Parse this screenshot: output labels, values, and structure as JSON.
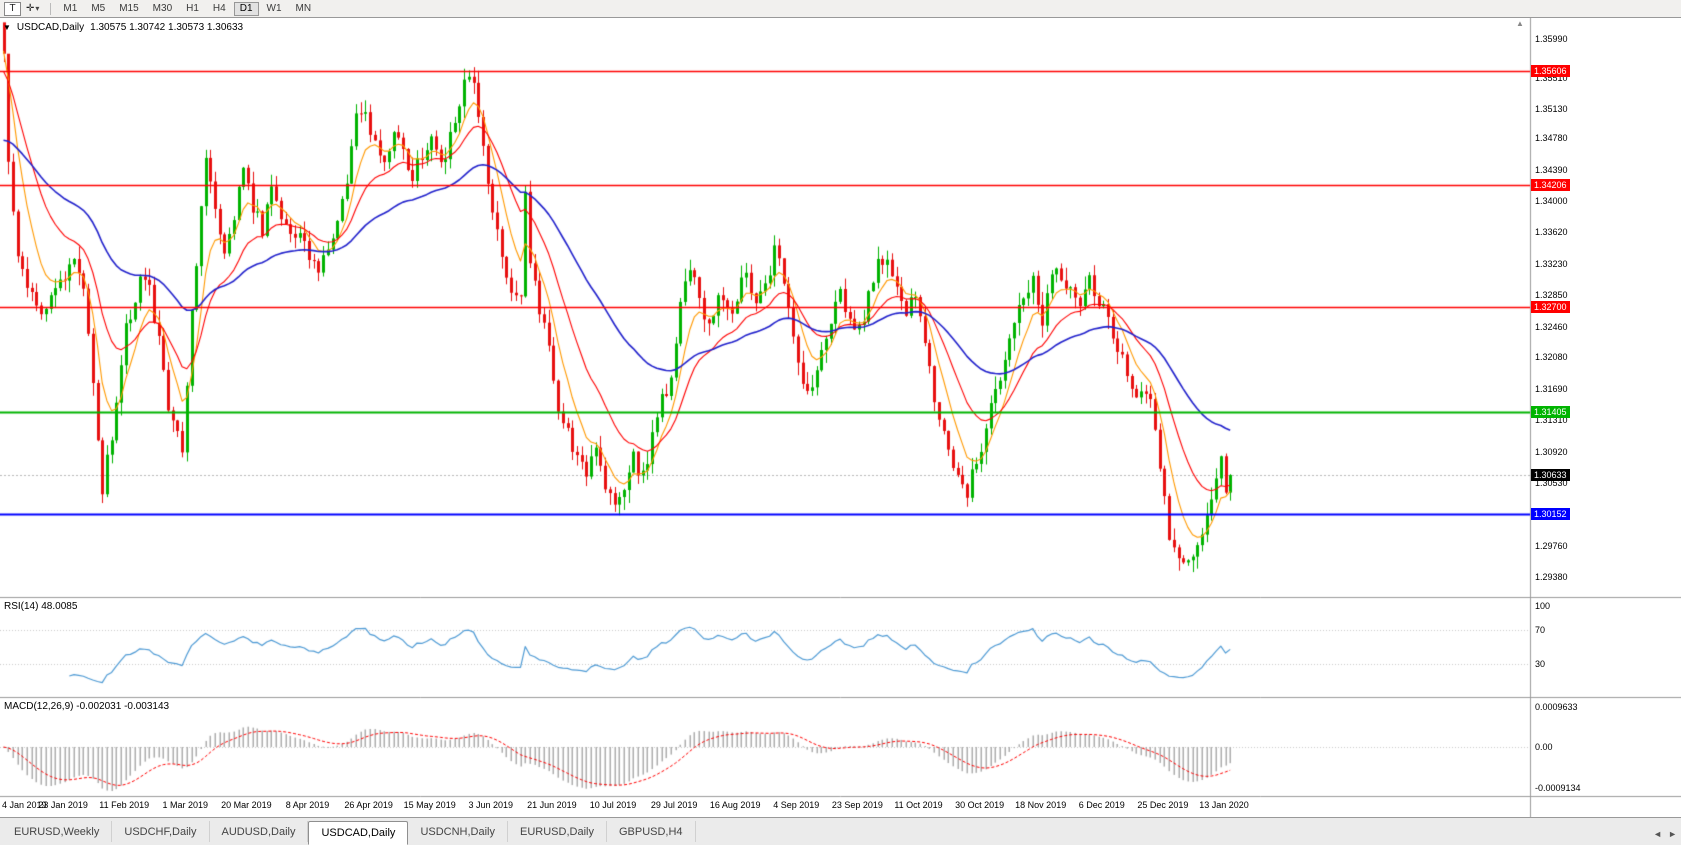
{
  "icons": {
    "collapse_arrow": "▼",
    "dropdown": "▾",
    "crosshair": "✛",
    "shift_marker": "▲",
    "tab_scroll_left": "◄",
    "tab_scroll_right": "►"
  },
  "toolbar": {
    "text_tool_label": "T",
    "timeframes": [
      "M1",
      "M5",
      "M15",
      "M30",
      "H1",
      "H4",
      "D1",
      "W1",
      "MN"
    ],
    "active_timeframe": "D1"
  },
  "chart": {
    "symbol_label": "USDCAD,Daily",
    "ohlc_text": "1.30575 1.30742 1.30573 1.30633",
    "open": "1.30575",
    "high": "1.30742",
    "low": "1.30573",
    "close": "1.30633"
  },
  "indicators": {
    "rsi_label": "RSI(14) 48.0085",
    "macd_label": "MACD(12,26,9) -0.002031 -0.003143"
  },
  "tabs": {
    "items": [
      "EURUSD,Weekly",
      "USDCHF,Daily",
      "AUDUSD,Daily",
      "USDCAD,Daily",
      "USDCNH,Daily",
      "EURUSD,Daily",
      "GBPUSD,H4"
    ],
    "active": "USDCAD,Daily"
  },
  "chart_data": [
    {
      "type": "candlestick",
      "title": "USDCAD Daily",
      "up_color": "#00b300",
      "down_color": "#e81010",
      "x_tick_labels": [
        "4 Jan 2019",
        "23 Jan 2019",
        "11 Feb 2019",
        "1 Mar 2019",
        "20 Mar 2019",
        "8 Apr 2019",
        "26 Apr 2019",
        "15 May 2019",
        "3 Jun 2019",
        "21 Jun 2019",
        "10 Jul 2019",
        "29 Jul 2019",
        "16 Aug 2019",
        "4 Sep 2019",
        "23 Sep 2019",
        "11 Oct 2019",
        "30 Oct 2019",
        "18 Nov 2019",
        "6 Dec 2019",
        "25 Dec 2019",
        "13 Jan 2020"
      ],
      "candles_per_tick_interval": 13,
      "candle_count": 262,
      "last_close": 1.30633,
      "price_path_anchors": [
        [
          0,
          1.3585
        ],
        [
          1,
          1.344
        ],
        [
          3,
          1.333
        ],
        [
          5,
          1.3285
        ],
        [
          8,
          1.3265
        ],
        [
          11,
          1.3292
        ],
        [
          13,
          1.3312
        ],
        [
          15,
          1.3332
        ],
        [
          17,
          1.329
        ],
        [
          19,
          1.318
        ],
        [
          21,
          1.3048
        ],
        [
          23,
          1.311
        ],
        [
          26,
          1.3242
        ],
        [
          29,
          1.3302
        ],
        [
          31,
          1.329
        ],
        [
          33,
          1.3232
        ],
        [
          35,
          1.3152
        ],
        [
          38,
          1.31
        ],
        [
          40,
          1.3262
        ],
        [
          43,
          1.3452
        ],
        [
          45,
          1.339
        ],
        [
          47,
          1.3342
        ],
        [
          49,
          1.3382
        ],
        [
          51,
          1.3432
        ],
        [
          53,
          1.3392
        ],
        [
          55,
          1.3362
        ],
        [
          57,
          1.3428
        ],
        [
          59,
          1.3372
        ],
        [
          61,
          1.3352
        ],
        [
          63,
          1.3362
        ],
        [
          65,
          1.3332
        ],
        [
          67,
          1.3312
        ],
        [
          69,
          1.3342
        ],
        [
          71,
          1.3382
        ],
        [
          73,
          1.3428
        ],
        [
          75,
          1.3498
        ],
        [
          77,
          1.3512
        ],
        [
          79,
          1.3472
        ],
        [
          81,
          1.3442
        ],
        [
          83,
          1.3482
        ],
        [
          85,
          1.3462
        ],
        [
          87,
          1.3432
        ],
        [
          89,
          1.3452
        ],
        [
          91,
          1.3472
        ],
        [
          93,
          1.3442
        ],
        [
          95,
          1.3482
        ],
        [
          97,
          1.3522
        ],
        [
          99,
          1.3556
        ],
        [
          100,
          1.3542
        ],
        [
          102,
          1.3472
        ],
        [
          104,
          1.3392
        ],
        [
          106,
          1.3332
        ],
        [
          108,
          1.3292
        ],
        [
          110,
          1.3278
        ],
        [
          111,
          1.3415
        ],
        [
          112,
          1.3318
        ],
        [
          114,
          1.3272
        ],
        [
          116,
          1.3222
        ],
        [
          118,
          1.3152
        ],
        [
          120,
          1.3112
        ],
        [
          122,
          1.3092
        ],
        [
          124,
          1.3062
        ],
        [
          126,
          1.3092
        ],
        [
          128,
          1.3042
        ],
        [
          130,
          1.3022
        ],
        [
          132,
          1.3052
        ],
        [
          134,
          1.3082
        ],
        [
          136,
          1.3062
        ],
        [
          138,
          1.3112
        ],
        [
          140,
          1.3152
        ],
        [
          142,
          1.3182
        ],
        [
          144,
          1.3282
        ],
        [
          146,
          1.3322
        ],
        [
          148,
          1.3272
        ],
        [
          150,
          1.3242
        ],
        [
          152,
          1.3282
        ],
        [
          154,
          1.3262
        ],
        [
          156,
          1.3282
        ],
        [
          158,
          1.3312
        ],
        [
          160,
          1.3272
        ],
        [
          162,
          1.3292
        ],
        [
          164,
          1.3342
        ],
        [
          166,
          1.3302
        ],
        [
          168,
          1.3242
        ],
        [
          170,
          1.3172
        ],
        [
          172,
          1.3162
        ],
        [
          174,
          1.3212
        ],
        [
          176,
          1.3252
        ],
        [
          178,
          1.3282
        ],
        [
          180,
          1.3262
        ],
        [
          182,
          1.3242
        ],
        [
          184,
          1.3282
        ],
        [
          186,
          1.3322
        ],
        [
          188,
          1.3332
        ],
        [
          190,
          1.3292
        ],
        [
          192,
          1.3262
        ],
        [
          194,
          1.3292
        ],
        [
          196,
          1.3222
        ],
        [
          198,
          1.3162
        ],
        [
          200,
          1.3122
        ],
        [
          202,
          1.3082
        ],
        [
          205,
          1.3042
        ],
        [
          207,
          1.3082
        ],
        [
          209,
          1.3122
        ],
        [
          211,
          1.3162
        ],
        [
          213,
          1.3202
        ],
        [
          215,
          1.3242
        ],
        [
          217,
          1.3282
        ],
        [
          219,
          1.3302
        ],
        [
          221,
          1.3252
        ],
        [
          223,
          1.3302
        ],
        [
          225,
          1.3312
        ],
        [
          227,
          1.3292
        ],
        [
          229,
          1.3282
        ],
        [
          231,
          1.3302
        ],
        [
          233,
          1.3282
        ],
        [
          235,
          1.3252
        ],
        [
          237,
          1.3222
        ],
        [
          239,
          1.3182
        ],
        [
          241,
          1.3162
        ],
        [
          243,
          1.3172
        ],
        [
          245,
          1.3122
        ],
        [
          246,
          1.3072
        ],
        [
          248,
          1.2992
        ],
        [
          250,
          1.2962
        ],
        [
          252,
          1.2952
        ],
        [
          254,
          1.2982
        ],
        [
          256,
          1.3012
        ],
        [
          258,
          1.3062
        ],
        [
          259,
          1.309
        ],
        [
          260,
          1.3048
        ],
        [
          261,
          1.30633
        ]
      ],
      "y_axis_tick_labels": [
        "1.35990",
        "1.35510",
        "1.35130",
        "1.34780",
        "1.34390",
        "1.34000",
        "1.33620",
        "1.33230",
        "1.32850",
        "1.32460",
        "1.32080",
        "1.31690",
        "1.31310",
        "1.30920",
        "1.30530",
        "1.30140",
        "1.29760",
        "1.29380"
      ],
      "horizontal_levels": [
        {
          "price": 1.35606,
          "label": "1.35606",
          "color": "#ff0000",
          "width": 1.6
        },
        {
          "price": 1.34206,
          "label": "1.34206",
          "color": "#ff0000",
          "width": 1.6
        },
        {
          "price": 1.327,
          "label": "1.32700",
          "color": "#ff0000",
          "width": 1.6
        },
        {
          "price": 1.31405,
          "label": "1.31405",
          "color": "#00b400",
          "width": 2
        },
        {
          "price": 1.30152,
          "label": "1.30152",
          "color": "#0000ff",
          "width": 2
        }
      ],
      "current_price_marker": {
        "price": 1.30633,
        "label": "1.30633",
        "badge_color": "#000000"
      },
      "moving_averages": [
        {
          "name": "fast-ma",
          "color": "#ff9900",
          "alpha": 0.25,
          "start": 1.3585
        },
        {
          "name": "medium-ma",
          "color": "#ff0000",
          "alpha": 0.11,
          "start": 1.356
        },
        {
          "name": "slow-ma",
          "color": "#2222cc",
          "alpha": 0.042,
          "start": 1.3475
        }
      ]
    },
    {
      "type": "line",
      "name": "RSI",
      "label": "RSI(14) 48.0085",
      "period": 14,
      "current_value": 48.0085,
      "range": [
        0,
        100
      ],
      "level_lines": [
        70,
        30
      ],
      "y_tick_labels": [
        "100",
        "70",
        "30"
      ],
      "line_color": "#4f9bd5"
    },
    {
      "type": "macd",
      "name": "MACD",
      "label": "MACD(12,26,9) -0.002031 -0.003143",
      "fast": 12,
      "slow": 26,
      "signal": 9,
      "current_macd": -0.002031,
      "current_signal": -0.003143,
      "y_tick_labels": [
        "0.0009633",
        "0.00",
        "-0.0009134"
      ],
      "histogram_color": "#adadad",
      "signal_color": "#ff0000"
    }
  ]
}
